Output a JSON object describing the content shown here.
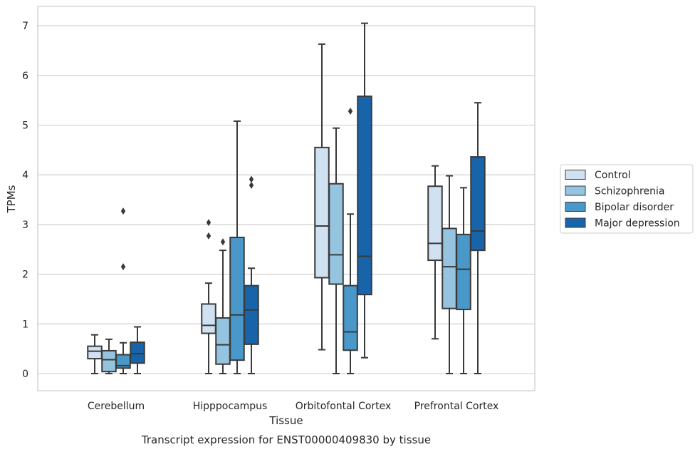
{
  "chart_data": {
    "type": "box",
    "xlabel": "Tissue",
    "ylabel": "TPMs",
    "caption": "Transcript expression for ENST00000409830 by tissue",
    "ylim": [
      -0.33,
      7.4
    ],
    "yticks": [
      "0",
      "1",
      "2",
      "3",
      "4",
      "5",
      "6",
      "7"
    ],
    "grid": "horizontal",
    "legend_position": "right",
    "categories": [
      "Cerebellum",
      "Hipppocampus",
      "Orbitofontal Cortex",
      "Prefrontal Cortex"
    ],
    "series": [
      {
        "name": "Control",
        "color": "#d0e1f2",
        "boxes": [
          {
            "min": 0.0,
            "q1": 0.3,
            "median": 0.45,
            "q3": 0.55,
            "max": 0.78,
            "outliers": []
          },
          {
            "min": 0.0,
            "q1": 0.81,
            "median": 0.97,
            "q3": 1.4,
            "max": 1.82,
            "outliers": [
              2.77,
              3.04
            ]
          },
          {
            "min": 0.48,
            "q1": 1.93,
            "median": 2.97,
            "q3": 4.55,
            "max": 6.63,
            "outliers": []
          },
          {
            "min": 0.7,
            "q1": 2.28,
            "median": 2.62,
            "q3": 3.77,
            "max": 4.18,
            "outliers": []
          }
        ]
      },
      {
        "name": "Schizophrenia",
        "color": "#94c4df",
        "boxes": [
          {
            "min": 0.0,
            "q1": 0.04,
            "median": 0.28,
            "q3": 0.46,
            "max": 0.69,
            "outliers": []
          },
          {
            "min": 0.0,
            "q1": 0.19,
            "median": 0.58,
            "q3": 1.12,
            "max": 2.48,
            "outliers": [
              2.65
            ]
          },
          {
            "min": 0.0,
            "q1": 1.8,
            "median": 2.39,
            "q3": 3.82,
            "max": 4.94,
            "outliers": []
          },
          {
            "min": 0.0,
            "q1": 1.31,
            "median": 2.15,
            "q3": 2.92,
            "max": 3.98,
            "outliers": []
          }
        ]
      },
      {
        "name": "Bipolar disorder",
        "color": "#4a98c9",
        "boxes": [
          {
            "min": 0.0,
            "q1": 0.11,
            "median": 0.16,
            "q3": 0.38,
            "max": 0.62,
            "outliers": [
              2.15,
              3.27
            ]
          },
          {
            "min": 0.0,
            "q1": 0.27,
            "median": 1.18,
            "q3": 2.74,
            "max": 5.08,
            "outliers": []
          },
          {
            "min": 0.0,
            "q1": 0.47,
            "median": 0.84,
            "q3": 1.77,
            "max": 3.21,
            "outliers": [
              5.28
            ]
          },
          {
            "min": 0.0,
            "q1": 1.29,
            "median": 2.1,
            "q3": 2.8,
            "max": 3.74,
            "outliers": []
          }
        ]
      },
      {
        "name": "Major depression",
        "color": "#1764ab",
        "boxes": [
          {
            "min": 0.0,
            "q1": 0.21,
            "median": 0.4,
            "q3": 0.63,
            "max": 0.94,
            "outliers": []
          },
          {
            "min": 0.0,
            "q1": 0.59,
            "median": 1.28,
            "q3": 1.77,
            "max": 2.12,
            "outliers": [
              3.79,
              3.91
            ]
          },
          {
            "min": 0.32,
            "q1": 1.59,
            "median": 2.36,
            "q3": 5.58,
            "max": 7.05,
            "outliers": []
          },
          {
            "min": 0.0,
            "q1": 2.48,
            "median": 2.87,
            "q3": 4.36,
            "max": 5.45,
            "outliers": []
          }
        ]
      }
    ]
  }
}
